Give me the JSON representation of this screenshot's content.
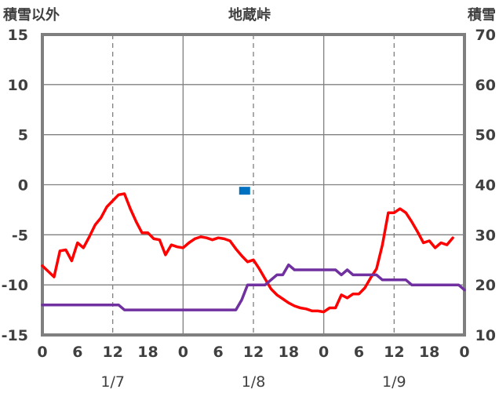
{
  "chart_data": {
    "type": "line",
    "title": "地蔵峠",
    "left_axis_label": "積雪以外",
    "right_axis_label": "積雪",
    "left_axis": {
      "min": -15,
      "max": 15,
      "ticks": [
        15,
        10,
        5,
        0,
        -5,
        -10,
        -15
      ]
    },
    "right_axis": {
      "min": 10,
      "max": 70,
      "ticks": [
        70,
        60,
        50,
        40,
        30,
        20,
        10
      ]
    },
    "x_range_hours": [
      0,
      72
    ],
    "x_tick_labels": [
      "0",
      "6",
      "12",
      "18",
      "0",
      "6",
      "12",
      "18",
      "0",
      "6",
      "12",
      "18",
      "0"
    ],
    "date_labels": [
      {
        "text": "1/7",
        "hour": 12
      },
      {
        "text": "1/8",
        "hour": 36
      },
      {
        "text": "1/9",
        "hour": 60
      }
    ],
    "grid": true,
    "colors": {
      "temperature": "#ff0000",
      "snow_depth": "#7030a0",
      "marker": "#0070c0",
      "frame": "#7f7f7f"
    },
    "series": [
      {
        "key": "temperature",
        "axis": "left",
        "points": [
          [
            0,
            -8.1
          ],
          [
            2,
            -9.2
          ],
          [
            3,
            -6.6
          ],
          [
            4,
            -6.5
          ],
          [
            5,
            -7.6
          ],
          [
            6,
            -5.8
          ],
          [
            7,
            -6.3
          ],
          [
            8,
            -5.2
          ],
          [
            9,
            -4.0
          ],
          [
            10,
            -3.3
          ],
          [
            11,
            -2.2
          ],
          [
            12,
            -1.6
          ],
          [
            13,
            -1.0
          ],
          [
            14,
            -0.9
          ],
          [
            15,
            -2.4
          ],
          [
            16,
            -3.7
          ],
          [
            17,
            -4.8
          ],
          [
            18,
            -4.8
          ],
          [
            19,
            -5.4
          ],
          [
            20,
            -5.5
          ],
          [
            21,
            -7.0
          ],
          [
            22,
            -6.0
          ],
          [
            23,
            -6.2
          ],
          [
            24,
            -6.3
          ],
          [
            25,
            -5.8
          ],
          [
            26,
            -5.4
          ],
          [
            27,
            -5.2
          ],
          [
            28,
            -5.3
          ],
          [
            29,
            -5.5
          ],
          [
            30,
            -5.3
          ],
          [
            31,
            -5.4
          ],
          [
            32,
            -5.6
          ],
          [
            33,
            -6.4
          ],
          [
            34,
            -7.1
          ],
          [
            35,
            -7.7
          ],
          [
            36,
            -7.5
          ],
          [
            37,
            -8.4
          ],
          [
            38,
            -9.4
          ],
          [
            39,
            -10.4
          ],
          [
            40,
            -11.0
          ],
          [
            41,
            -11.4
          ],
          [
            42,
            -11.8
          ],
          [
            43,
            -12.1
          ],
          [
            44,
            -12.3
          ],
          [
            45,
            -12.4
          ],
          [
            46,
            -12.6
          ],
          [
            47,
            -12.6
          ],
          [
            48,
            -12.7
          ],
          [
            49,
            -12.3
          ],
          [
            50,
            -12.3
          ],
          [
            51,
            -11.0
          ],
          [
            52,
            -11.3
          ],
          [
            53,
            -10.9
          ],
          [
            54,
            -10.9
          ],
          [
            55,
            -10.3
          ],
          [
            56,
            -9.3
          ],
          [
            57,
            -8.4
          ],
          [
            58,
            -6.0
          ],
          [
            59,
            -2.8
          ],
          [
            60,
            -2.8
          ],
          [
            61,
            -2.4
          ],
          [
            62,
            -2.8
          ],
          [
            63,
            -3.7
          ],
          [
            64,
            -4.7
          ],
          [
            65,
            -5.8
          ],
          [
            66,
            -5.6
          ],
          [
            67,
            -6.3
          ],
          [
            68,
            -5.8
          ],
          [
            69,
            -6.0
          ],
          [
            70,
            -5.3
          ]
        ]
      },
      {
        "key": "snow_depth",
        "axis": "right",
        "points": [
          [
            0,
            16
          ],
          [
            13,
            16
          ],
          [
            14,
            15
          ],
          [
            33,
            15
          ],
          [
            34,
            17
          ],
          [
            35,
            20
          ],
          [
            38,
            20
          ],
          [
            39,
            21
          ],
          [
            40,
            22
          ],
          [
            41,
            22
          ],
          [
            42,
            24
          ],
          [
            43,
            23
          ],
          [
            50,
            23
          ],
          [
            51,
            22
          ],
          [
            52,
            23
          ],
          [
            53,
            22
          ],
          [
            57,
            22
          ],
          [
            58,
            21
          ],
          [
            62,
            21
          ],
          [
            63,
            20
          ],
          [
            71,
            20
          ],
          [
            72,
            19
          ]
        ]
      },
      {
        "key": "marker",
        "axis": "left",
        "style": "square",
        "points": [
          [
            34.5,
            -0.6
          ]
        ]
      }
    ]
  }
}
